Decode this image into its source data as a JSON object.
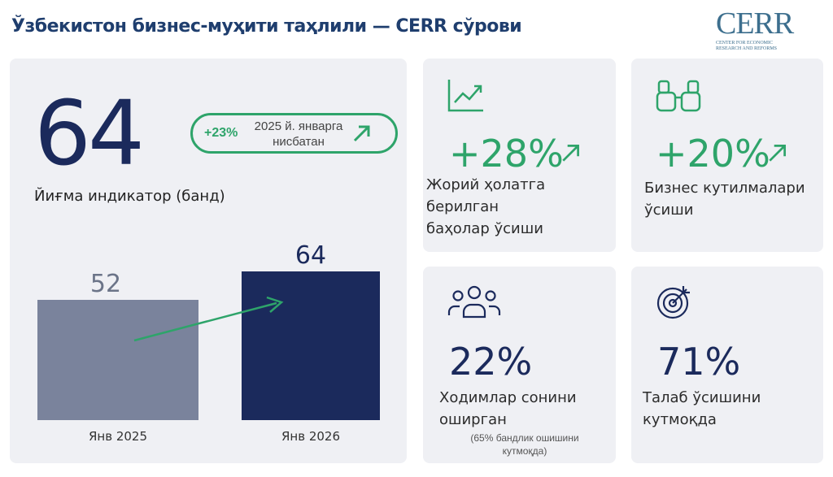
{
  "header": {
    "title": "Ўзбекистон бизнес-муҳити таҳлили — CERR сўрови",
    "logo_text": "CERR",
    "logo_sub": "Center for Economic Research and Reforms"
  },
  "main_card": {
    "value": "64",
    "label": "Йиғма индикатор (банд)",
    "badge_pct": "+23%",
    "badge_text_1": "2025 й. январга",
    "badge_text_2": "нисбатан"
  },
  "chart_data": {
    "type": "bar",
    "categories": [
      "Янв 2025",
      "Янв 2026"
    ],
    "values": [
      52,
      64
    ],
    "value_labels": [
      "52",
      "64"
    ],
    "colors": [
      "#7a839c",
      "#1b2a5c"
    ],
    "ylim": [
      0,
      70
    ]
  },
  "cards": [
    {
      "icon": "line-chart-icon",
      "value": "+28%",
      "label_1": "Жорий ҳолатга берилган",
      "label_2": "баҳолар ўсиши"
    },
    {
      "icon": "binoculars-icon",
      "value": "+20%",
      "label_1": "Бизнес кутилмалари",
      "label_2": "ўсиши"
    },
    {
      "icon": "people-icon",
      "value": "22%",
      "label_1": "Ходимлар сонини",
      "label_2": "оширган",
      "note_1": "(65% бандлик ошишини",
      "note_2": "кутмоқда)"
    },
    {
      "icon": "target-icon",
      "value": "71%",
      "label_1": "Талаб ўсишини",
      "label_2": "кутмоқда"
    }
  ],
  "colors": {
    "green": "#2ea46a",
    "navy": "#1b2a5c",
    "gray_bar": "#7a839c"
  }
}
